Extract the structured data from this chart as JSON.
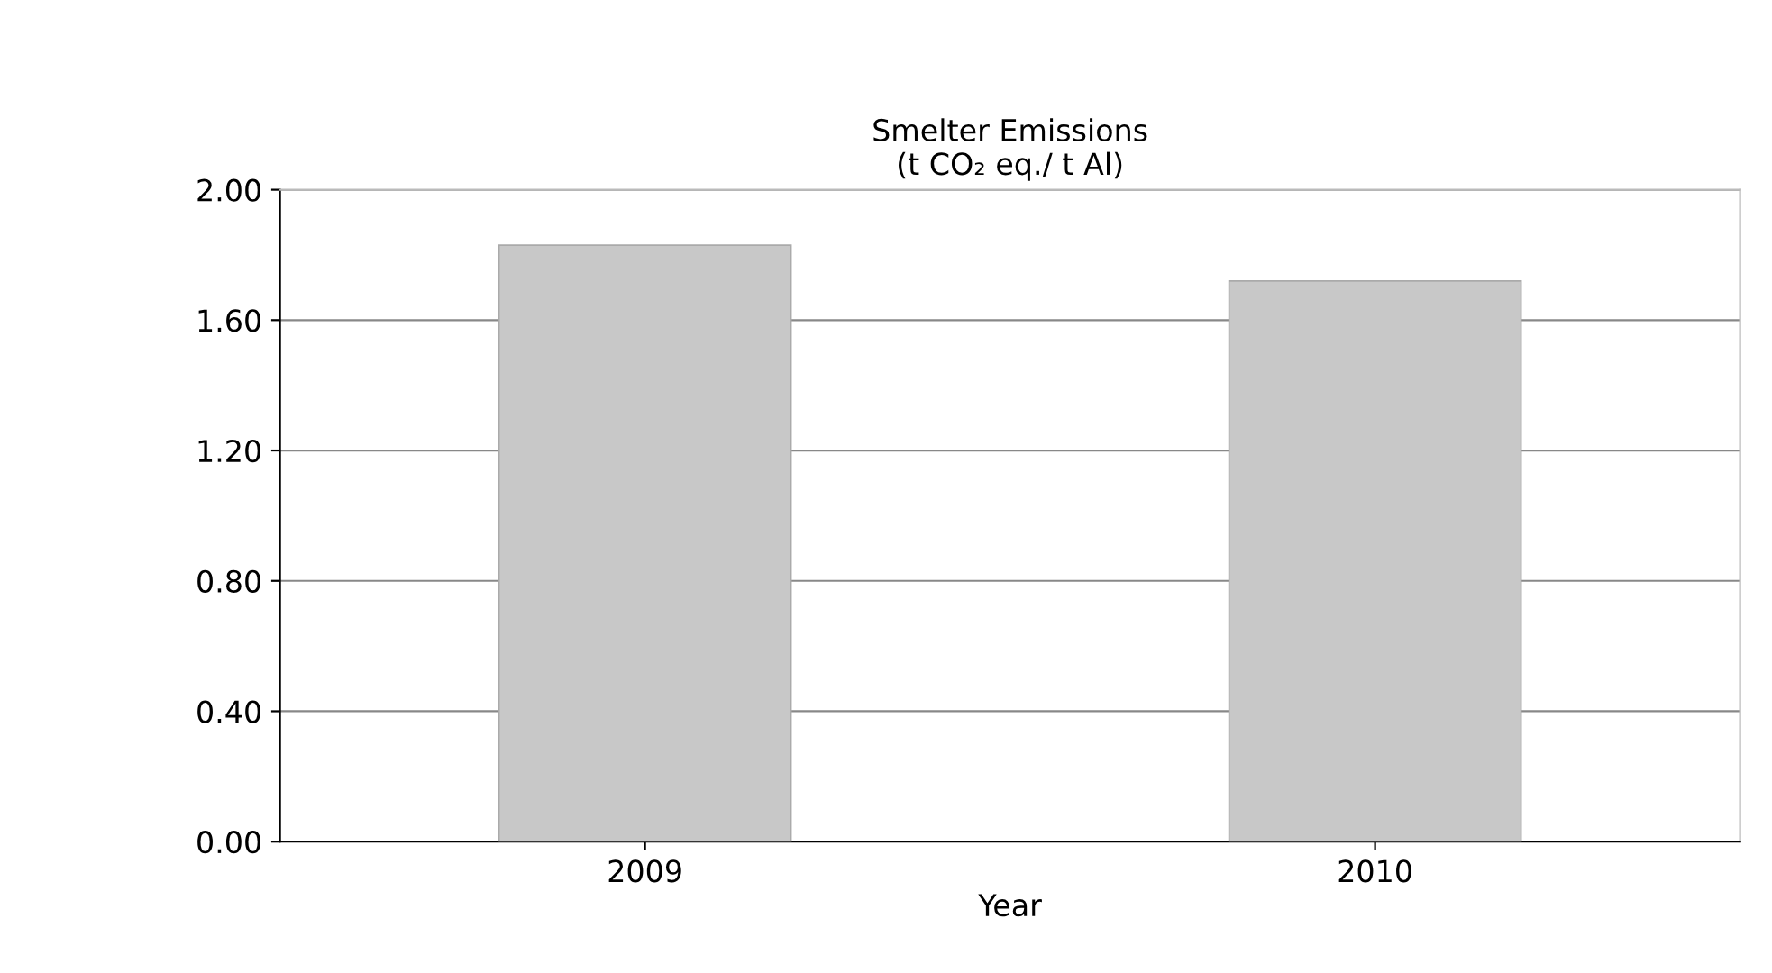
{
  "chart_data": {
    "type": "bar",
    "title": "Smelter Emissions\n(t CO₂ eq./ t Al)",
    "xlabel": "Year",
    "categories": [
      "2009",
      "2010"
    ],
    "values": [
      1.83,
      1.72
    ],
    "color": "#c8c8c8",
    "ylim": [
      0,
      2
    ],
    "yticks": [
      {
        "value": 0,
        "label": "0.00"
      },
      {
        "value": 0.4,
        "label": "0.40"
      },
      {
        "value": 0.8,
        "label": "0.80"
      },
      {
        "value": 1.2,
        "label": "1.20"
      },
      {
        "value": 1.6,
        "label": "1.60"
      },
      {
        "value": 2,
        "label": "2.00"
      }
    ],
    "grid": "y",
    "legend": false
  }
}
